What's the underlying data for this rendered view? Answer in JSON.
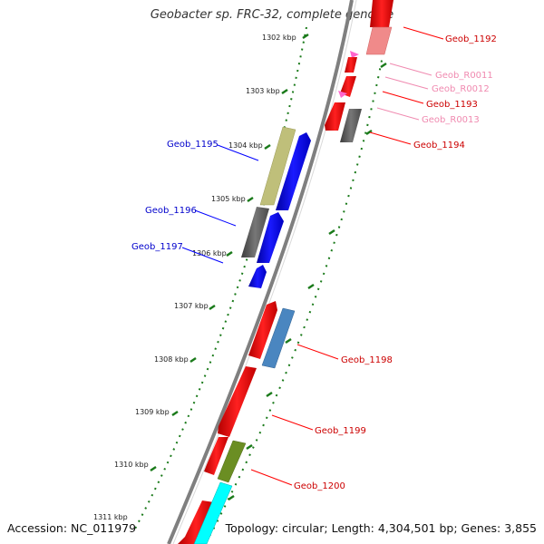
{
  "title": "Geobacter sp. FRC-32, complete genome",
  "accession_text": "Accession: NC_011979",
  "topology_text": "Topology: circular; Length: 4,304,501 bp; Genes: 3,855",
  "colors": {
    "backbone": "#7f7f7f",
    "ticks": "#1a7a1a",
    "red": "#ff0000",
    "pink": "#f08a8a",
    "trna": "#ff66cc",
    "gray": "#666666",
    "blue": "#0000ff",
    "olive": "#bfbf7a",
    "steelblue": "#4a86c0",
    "darkgreen": "#6b8e23",
    "cyan": "#00ffff"
  },
  "kbp_labels": [
    "1302 kbp",
    "1303 kbp",
    "1304 kbp",
    "1305 kbp",
    "1306 kbp",
    "1307 kbp",
    "1308 kbp",
    "1309 kbp",
    "1310 kbp",
    "1311 kbp"
  ],
  "gene_labels": {
    "geob_1192": "Geob_1192",
    "geob_r0011": "Geob_R0011",
    "geob_r0012": "Geob_R0012",
    "geob_1193": "Geob_1193",
    "geob_r0013": "Geob_R0013",
    "geob_1194": "Geob_1194",
    "geob_1195": "Geob_1195",
    "geob_1196": "Geob_1196",
    "geob_1197": "Geob_1197",
    "geob_1198": "Geob_1198",
    "geob_1199": "Geob_1199",
    "geob_1200": "Geob_1200"
  }
}
